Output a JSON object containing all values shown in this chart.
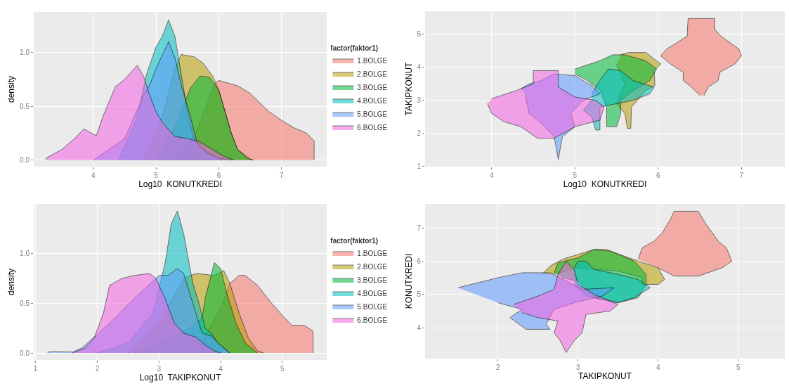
{
  "chart_data": [
    {
      "type": "area",
      "xlabel": "Log10  KONUTKREDI",
      "ylabel": "density",
      "xlim": [
        3.05,
        7.72
      ],
      "ylim": [
        -0.06,
        1.375
      ],
      "xticks": [
        4,
        5,
        6,
        7
      ],
      "yticks": [
        {
          "value": 0,
          "label": "0.0"
        },
        {
          "value": 0.5,
          "label": "0.5"
        },
        {
          "value": 1,
          "label": "1.0"
        }
      ],
      "grid": true,
      "legend": "right",
      "legend_title": "factor(faktor1)",
      "series": [
        {
          "name": "1.BOLGE",
          "color": "#F8766D",
          "x": [
            5.3,
            5.6,
            5.8,
            5.95,
            6.0,
            6.3,
            6.5,
            6.8,
            7.0,
            7.2,
            7.4,
            7.52,
            7.52
          ],
          "values": [
            0,
            0.2,
            0.5,
            0.72,
            0.74,
            0.69,
            0.62,
            0.45,
            0.37,
            0.3,
            0.25,
            0.18,
            0
          ]
        },
        {
          "name": "2.BOLGE",
          "color": "#B79F00",
          "x": [
            4.8,
            5.1,
            5.3,
            5.4,
            5.6,
            5.75,
            5.9,
            6.0,
            6.1,
            6.2,
            6.3,
            6.5,
            6.55
          ],
          "values": [
            0,
            0.4,
            0.85,
            0.98,
            0.96,
            0.9,
            0.78,
            0.65,
            0.45,
            0.25,
            0.1,
            0.01,
            0
          ]
        },
        {
          "name": "3.BOLGE",
          "color": "#00BA38",
          "x": [
            5.0,
            5.3,
            5.55,
            5.7,
            5.85,
            6.0,
            6.1,
            6.2,
            6.3,
            6.45,
            6.55
          ],
          "values": [
            0,
            0.3,
            0.67,
            0.78,
            0.77,
            0.65,
            0.45,
            0.25,
            0.1,
            0.02,
            0
          ]
        },
        {
          "name": "4.BOLGE",
          "color": "#00BFC4",
          "x": [
            4.4,
            4.7,
            4.85,
            5.0,
            5.1,
            5.2,
            5.3,
            5.4,
            5.5,
            5.6,
            5.7,
            5.9,
            6.05
          ],
          "values": [
            0,
            0.4,
            0.8,
            1.05,
            1.15,
            1.3,
            1.15,
            0.8,
            0.45,
            0.2,
            0.12,
            0.04,
            0
          ]
        },
        {
          "name": "5.BOLGE",
          "color": "#619CFF",
          "x": [
            4.0,
            4.5,
            4.8,
            4.9,
            5.0,
            5.2,
            5.3,
            5.4,
            5.55,
            5.65,
            5.8,
            6.0,
            6.2
          ],
          "values": [
            0,
            0.2,
            0.6,
            0.7,
            0.85,
            1.1,
            0.95,
            0.7,
            0.4,
            0.17,
            0.07,
            0.02,
            0
          ]
        },
        {
          "name": "6.BOLGE",
          "color": "#F564E3",
          "x": [
            3.25,
            3.25,
            3.5,
            3.7,
            3.85,
            4.0,
            4.05,
            4.15,
            4.35,
            4.5,
            4.7,
            4.8,
            4.9,
            5.0,
            5.1,
            5.3,
            5.5,
            5.7,
            5.9,
            6.1,
            6.25
          ],
          "values": [
            0,
            0.02,
            0.1,
            0.2,
            0.29,
            0.24,
            0.23,
            0.4,
            0.68,
            0.75,
            0.88,
            0.78,
            0.6,
            0.45,
            0.35,
            0.22,
            0.2,
            0.17,
            0.1,
            0.03,
            0
          ]
        }
      ]
    },
    {
      "type": "area",
      "xlabel": "Log10  KONUTKREDI",
      "ylabel": "TAKIPKONUT",
      "xlim": [
        3.2,
        7.52
      ],
      "ylim": [
        0.99,
        5.7
      ],
      "xticks": [
        4,
        5,
        6,
        7
      ],
      "yticks": [
        1,
        2,
        3,
        4,
        5
      ],
      "grid": true,
      "series": [
        {
          "color": "#F8766D",
          "x": [
            6.5,
            6.4,
            6.3,
            6.3,
            6.15,
            6.03,
            6.1,
            6.35,
            6.35,
            6.36,
            6.68,
            6.68,
            6.75,
            6.97,
            7.0,
            6.92,
            6.74,
            6.72,
            6.6,
            6.55
          ],
          "values": [
            3.15,
            3.4,
            3.6,
            3.85,
            4.1,
            4.35,
            4.55,
            4.95,
            5.15,
            5.48,
            5.48,
            5.15,
            4.95,
            4.55,
            4.35,
            4.1,
            3.85,
            3.6,
            3.4,
            3.15
          ]
        },
        {
          "color": "#B79F00",
          "x": [
            5.55,
            5.65,
            5.85,
            6.03,
            5.95,
            5.96,
            5.85,
            5.75,
            5.68,
            5.67,
            5.63,
            5.6,
            5.5,
            5.6,
            5.5
          ],
          "values": [
            4.38,
            4.45,
            4.45,
            4.1,
            3.9,
            3.45,
            3.3,
            3.0,
            2.8,
            2.15,
            2.15,
            2.6,
            2.9,
            3.5,
            4.1
          ]
        },
        {
          "color": "#00BA38",
          "x": [
            5.0,
            5.3,
            5.45,
            5.6,
            5.85,
            5.98,
            5.9,
            5.7,
            5.55,
            5.55,
            5.5,
            5.38,
            5.38,
            5.3,
            5.15,
            5.0
          ],
          "values": [
            3.95,
            4.2,
            4.38,
            4.38,
            4.2,
            3.95,
            3.6,
            3.3,
            3.0,
            2.6,
            2.2,
            2.2,
            2.8,
            3.3,
            3.6,
            3.8
          ]
        },
        {
          "color": "#00BFC4",
          "x": [
            5.2,
            5.3,
            5.4,
            5.55,
            5.7,
            5.95,
            5.9,
            5.7,
            5.5,
            5.3,
            5.3,
            5.25,
            5.2,
            5.1,
            5.2
          ],
          "values": [
            3.2,
            3.6,
            3.95,
            3.9,
            3.6,
            3.4,
            3.2,
            3.0,
            2.9,
            2.8,
            2.1,
            2.1,
            2.5,
            2.7,
            3.0
          ]
        },
        {
          "color": "#619CFF",
          "x": [
            4.35,
            4.45,
            4.6,
            4.75,
            5.0,
            5.2,
            5.3,
            5.1,
            4.95,
            5.0,
            4.85,
            4.82,
            4.8,
            4.78,
            4.75,
            4.6,
            4.45,
            4.4
          ],
          "values": [
            3.35,
            3.5,
            3.6,
            3.8,
            3.75,
            3.45,
            3.2,
            3.0,
            2.6,
            2.2,
            1.9,
            1.5,
            1.2,
            1.5,
            1.9,
            2.3,
            2.6,
            3.2
          ]
        },
        {
          "color": "#F564E3",
          "x": [
            3.95,
            4.0,
            4.15,
            4.35,
            4.55,
            4.75,
            5.0,
            5.3,
            5.35,
            5.25,
            5.0,
            4.8,
            4.8,
            4.5,
            4.5,
            4.3,
            4.0
          ],
          "values": [
            2.9,
            2.6,
            2.35,
            2.2,
            1.85,
            1.85,
            2.2,
            2.4,
            2.8,
            3.0,
            3.1,
            3.4,
            3.9,
            3.9,
            3.5,
            3.3,
            3.05
          ]
        }
      ]
    },
    {
      "type": "area",
      "xlabel": "Log10  TAKIPKONUT",
      "ylabel": "density",
      "xlim": [
        0.97,
        5.72
      ],
      "ylim": [
        -0.07,
        1.5
      ],
      "xticks": [
        1,
        2,
        3,
        4,
        5
      ],
      "yticks": [
        {
          "value": 0,
          "label": "0.0"
        },
        {
          "value": 0.5,
          "label": "0.5"
        },
        {
          "value": 1,
          "label": "1.0"
        }
      ],
      "grid": true,
      "legend": "right",
      "legend_title": "factor(faktor1)",
      "series": [
        {
          "name": "1.BOLGE",
          "color": "#F8766D",
          "x": [
            3.6,
            4.0,
            4.15,
            4.3,
            4.4,
            4.6,
            4.8,
            5.0,
            5.15,
            5.35,
            5.5,
            5.5
          ],
          "values": [
            0,
            0.45,
            0.7,
            0.78,
            0.78,
            0.68,
            0.52,
            0.38,
            0.28,
            0.28,
            0.22,
            0
          ]
        },
        {
          "name": "2.BOLGE",
          "color": "#B79F00",
          "x": [
            2.5,
            3.0,
            3.4,
            3.6,
            3.9,
            4.05,
            4.15,
            4.3,
            4.45,
            4.6,
            4.7
          ],
          "values": [
            0,
            0.3,
            0.75,
            0.8,
            0.78,
            0.83,
            0.7,
            0.4,
            0.15,
            0.02,
            0
          ]
        },
        {
          "name": "3.BOLGE",
          "color": "#00BA38",
          "x": [
            2.6,
            3.0,
            3.5,
            3.7,
            3.75,
            3.9,
            4.0,
            4.1,
            4.25,
            4.4,
            4.6
          ],
          "values": [
            0,
            0.1,
            0.25,
            0.35,
            0.55,
            0.91,
            0.85,
            0.6,
            0.3,
            0.1,
            0
          ]
        },
        {
          "name": "4.BOLGE",
          "color": "#00BFC4",
          "x": [
            2.0,
            2.5,
            2.9,
            3.1,
            3.2,
            3.3,
            3.4,
            3.55,
            3.65,
            3.75,
            3.85,
            3.95,
            4.15
          ],
          "values": [
            0,
            0.1,
            0.4,
            0.9,
            1.3,
            1.43,
            1.2,
            0.7,
            0.5,
            0.25,
            0.2,
            0.1,
            0
          ]
        },
        {
          "name": "5.BOLGE",
          "color": "#619CFF",
          "x": [
            1.2,
            1.2,
            1.3,
            1.6,
            1.75,
            1.95,
            2.2,
            2.6,
            3.0,
            3.15,
            3.3,
            3.4,
            3.55,
            3.7,
            3.85,
            4.0,
            4.15
          ],
          "values": [
            0,
            0.01,
            0.015,
            0.01,
            0.05,
            0.16,
            0.3,
            0.55,
            0.78,
            0.78,
            0.85,
            0.8,
            0.5,
            0.2,
            0.17,
            0.08,
            0
          ]
        },
        {
          "name": "6.BOLGE",
          "color": "#F564E3",
          "x": [
            1.6,
            1.8,
            1.95,
            2.1,
            2.2,
            2.4,
            2.6,
            2.85,
            2.95,
            3.1,
            3.25,
            3.4,
            3.6,
            3.75,
            3.9,
            4.0
          ],
          "values": [
            0,
            0.05,
            0.15,
            0.4,
            0.68,
            0.75,
            0.78,
            0.8,
            0.75,
            0.55,
            0.3,
            0.2,
            0.16,
            0.08,
            0.02,
            0
          ]
        }
      ]
    },
    {
      "type": "area",
      "xlabel": "TAKIPKONUT",
      "ylabel": "KONUTKREDI",
      "xlim": [
        1.09,
        5.58
      ],
      "ylim": [
        3.07,
        7.72
      ],
      "xticks": [
        2,
        3,
        4,
        5
      ],
      "yticks": [
        4,
        5,
        6,
        7
      ],
      "grid": true,
      "series": [
        {
          "color": "#F8766D",
          "x": [
            3.75,
            3.8,
            3.95,
            4.05,
            4.15,
            4.2,
            4.5,
            4.6,
            4.75,
            4.85,
            4.92,
            4.8,
            4.5,
            4.2,
            4.0
          ],
          "values": [
            6.05,
            6.4,
            6.6,
            6.85,
            7.25,
            7.5,
            7.5,
            7.1,
            6.6,
            6.4,
            6.0,
            5.8,
            5.55,
            5.55,
            5.8
          ]
        },
        {
          "color": "#B79F00",
          "x": [
            2.55,
            2.65,
            2.8,
            3.2,
            3.35,
            3.75,
            4.0,
            4.08,
            4.0,
            3.8,
            3.8,
            3.5,
            3.0,
            2.7
          ],
          "values": [
            5.6,
            5.85,
            6.05,
            6.35,
            6.35,
            6.0,
            5.8,
            5.45,
            5.3,
            5.3,
            5.5,
            5.7,
            5.8,
            5.6
          ]
        },
        {
          "color": "#00BA38",
          "x": [
            2.7,
            2.75,
            3.0,
            3.2,
            3.4,
            3.7,
            3.85,
            3.85,
            3.75,
            3.5,
            3.2,
            3.0,
            2.8
          ],
          "values": [
            5.65,
            5.95,
            6.1,
            6.35,
            6.3,
            6.0,
            5.6,
            5.3,
            4.9,
            4.75,
            4.9,
            5.4,
            5.5
          ]
        },
        {
          "color": "#00BFC4",
          "x": [
            2.95,
            3.0,
            3.1,
            3.2,
            3.5,
            3.75,
            3.9,
            3.7,
            3.5,
            3.3,
            3.1,
            2.95
          ],
          "values": [
            5.8,
            6.0,
            6.0,
            5.75,
            5.6,
            5.45,
            5.2,
            4.9,
            4.75,
            4.85,
            4.95,
            5.3
          ]
        },
        {
          "color": "#619CFF",
          "x": [
            1.5,
            2.0,
            2.3,
            2.65,
            2.85,
            3.05,
            3.45,
            3.3,
            2.95,
            2.7,
            2.6,
            2.65,
            2.35,
            2.15,
            2.3,
            2.0
          ],
          "values": [
            5.2,
            5.5,
            5.65,
            5.65,
            5.4,
            5.15,
            5.2,
            4.95,
            4.75,
            4.55,
            4.1,
            3.95,
            3.95,
            4.3,
            4.55,
            4.75
          ]
        },
        {
          "color": "#F564E3",
          "x": [
            2.2,
            2.5,
            2.7,
            2.75,
            2.85,
            2.95,
            3.0,
            3.2,
            3.5,
            3.4,
            3.1,
            3.05,
            2.95,
            2.85,
            2.78,
            2.7,
            2.75,
            2.5,
            2.3
          ],
          "values": [
            4.7,
            4.95,
            5.15,
            5.6,
            6.0,
            5.75,
            5.3,
            5.0,
            4.7,
            4.5,
            4.4,
            3.85,
            3.6,
            3.25,
            3.6,
            3.85,
            4.2,
            4.3,
            4.45
          ]
        }
      ]
    }
  ]
}
